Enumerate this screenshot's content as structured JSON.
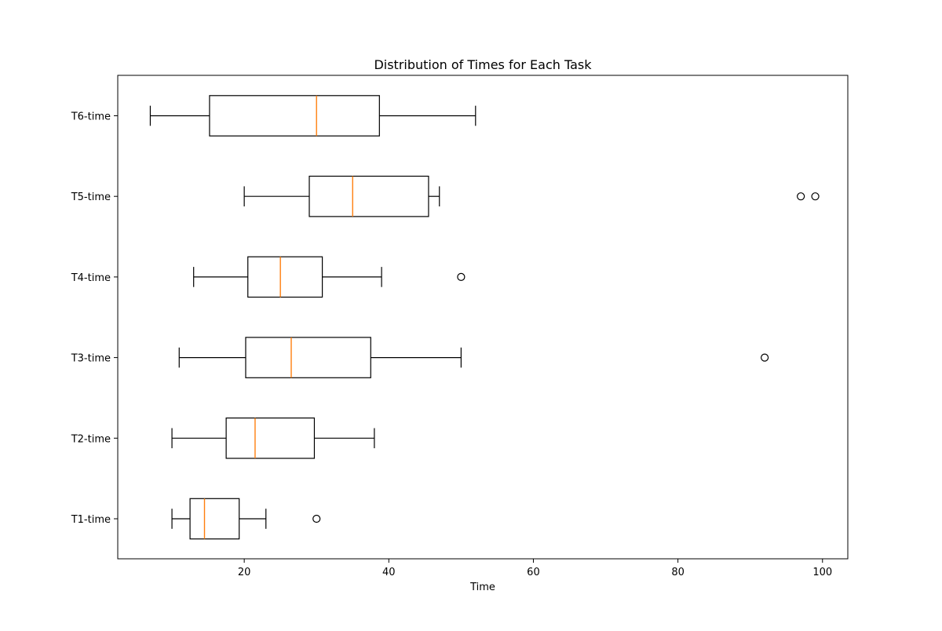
{
  "chart_data": {
    "type": "boxplot",
    "orientation": "horizontal",
    "title": "Distribution of Times for Each Task",
    "xlabel": "Time",
    "ylabel": "",
    "xlim": [
      2.5,
      103.5
    ],
    "xticks": [
      20,
      40,
      60,
      80,
      100
    ],
    "grid": false,
    "categories": [
      "T1-time",
      "T2-time",
      "T3-time",
      "T4-time",
      "T5-time",
      "T6-time"
    ],
    "boxes": [
      {
        "label": "T1-time",
        "whisker_low": 10,
        "q1": 12.5,
        "median": 14.5,
        "q3": 19.3,
        "whisker_high": 23,
        "outliers": [
          30
        ]
      },
      {
        "label": "T2-time",
        "whisker_low": 10,
        "q1": 17.5,
        "median": 21.5,
        "q3": 29.7,
        "whisker_high": 38,
        "outliers": []
      },
      {
        "label": "T3-time",
        "whisker_low": 11,
        "q1": 20.2,
        "median": 26.5,
        "q3": 37.5,
        "whisker_high": 50,
        "outliers": [
          92
        ]
      },
      {
        "label": "T4-time",
        "whisker_low": 13,
        "q1": 20.5,
        "median": 25,
        "q3": 30.8,
        "whisker_high": 39,
        "outliers": [
          50
        ]
      },
      {
        "label": "T5-time",
        "whisker_low": 20,
        "q1": 29,
        "median": 35,
        "q3": 45.5,
        "whisker_high": 47,
        "outliers": [
          97,
          99
        ]
      },
      {
        "label": "T6-time",
        "whisker_low": 7,
        "q1": 15.2,
        "median": 30,
        "q3": 38.7,
        "whisker_high": 52,
        "outliers": []
      }
    ],
    "colors": {
      "box": "#000000",
      "median": "#ff7f0e",
      "outlier": "#000000"
    }
  }
}
